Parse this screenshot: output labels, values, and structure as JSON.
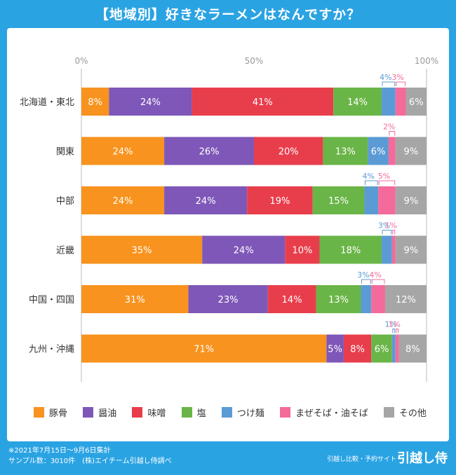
{
  "page": {
    "title": "【地域別】好きなラーメンはなんですか？",
    "note_line1": "※2021年7月15日〜9月6日集計",
    "note_line2": "サンプル数：3010件　(株)エイチーム引越し侍調べ",
    "brand_sub": "引越し比較・予約サイト",
    "brand_main": "引越し侍",
    "background_color": "#2aa3e3"
  },
  "chart_data": {
    "type": "bar",
    "orientation": "horizontal",
    "stacked": true,
    "title": "【地域別】好きなラーメンはなんですか？",
    "xlabel": "",
    "ylabel": "",
    "xlim": [
      0,
      100
    ],
    "x_ticks": [
      "0%",
      "50%",
      "100%"
    ],
    "grid": false,
    "legend_position": "bottom",
    "categories": [
      "北海道・東北",
      "関東",
      "中部",
      "近畿",
      "中国・四国",
      "九州・沖縄"
    ],
    "series": [
      {
        "name": "豚骨",
        "color": "#f7931e",
        "values": [
          8,
          24,
          24,
          35,
          31,
          71
        ]
      },
      {
        "name": "醤油",
        "color": "#7e57b8",
        "values": [
          24,
          26,
          24,
          24,
          23,
          5
        ]
      },
      {
        "name": "味噌",
        "color": "#e83e4c",
        "values": [
          41,
          20,
          19,
          10,
          14,
          8
        ]
      },
      {
        "name": "塩",
        "color": "#6ab547",
        "values": [
          14,
          13,
          15,
          18,
          13,
          6
        ]
      },
      {
        "name": "つけ麺",
        "color": "#5b9bd5",
        "values": [
          4,
          6,
          4,
          3,
          3,
          1
        ]
      },
      {
        "name": "まぜそば・油そば",
        "color": "#f46a9b",
        "values": [
          3,
          2,
          5,
          1,
          4,
          1
        ]
      },
      {
        "name": "その他",
        "color": "#a6a6a6",
        "values": [
          6,
          9,
          9,
          9,
          12,
          8
        ]
      }
    ],
    "labels": [
      [
        "8%",
        "24%",
        "41%",
        "14%",
        "4%",
        "3%",
        "6%"
      ],
      [
        "24%",
        "26%",
        "20%",
        "13%",
        "6%",
        "2%",
        "9%"
      ],
      [
        "24%",
        "24%",
        "19%",
        "15%",
        "4%",
        "5%",
        "9%"
      ],
      [
        "35%",
        "24%",
        "10%",
        "18%",
        "3%",
        "1%",
        "9%"
      ],
      [
        "31%",
        "23%",
        "14%",
        "13%",
        "3%",
        "4%",
        "12%"
      ],
      [
        "71%",
        "5%",
        "8%",
        "6%",
        "1%",
        "1%",
        "8%"
      ]
    ],
    "callout_labels": [
      [
        false,
        false,
        false,
        false,
        true,
        true,
        false
      ],
      [
        false,
        false,
        false,
        false,
        false,
        true,
        false
      ],
      [
        false,
        false,
        false,
        false,
        true,
        true,
        false
      ],
      [
        false,
        false,
        false,
        false,
        true,
        true,
        false
      ],
      [
        false,
        false,
        false,
        false,
        true,
        true,
        false
      ],
      [
        false,
        false,
        false,
        false,
        true,
        true,
        false
      ]
    ]
  }
}
